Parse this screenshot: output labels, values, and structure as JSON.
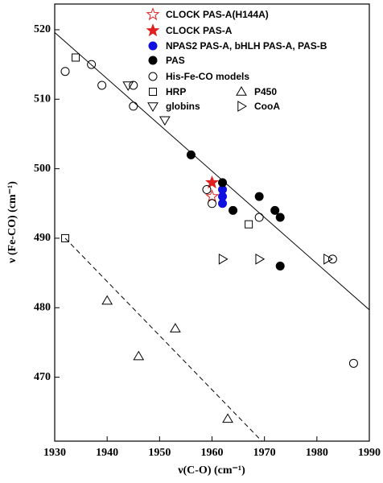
{
  "chart_data": {
    "type": "scatter",
    "x_label": "ν(C-O) (cm⁻¹)",
    "y_label": "ν (Fe-CO) (cm⁻¹)",
    "xlim": [
      1930,
      1990
    ],
    "xticks": [
      1930,
      1940,
      1950,
      1960,
      1970,
      1980,
      1990
    ],
    "ylim": [
      460.8,
      523.7
    ],
    "yticks": [
      470,
      480,
      490,
      500,
      510,
      520
    ],
    "series": [
      {
        "name": "CLOCK PAS-A(H144A)",
        "color": "#e02020",
        "marker": "star-open",
        "x": [
          1960
        ],
        "y": [
          496
        ]
      },
      {
        "name": "CLOCK PAS-A",
        "color": "#e02020",
        "marker": "star",
        "x": [
          1960
        ],
        "y": [
          498
        ]
      },
      {
        "name": "NPAS2 PAS-A, bHLH PAS-A, PAS-B",
        "color": "#1010e0",
        "marker": "circle",
        "x": [
          1962,
          1962,
          1962
        ],
        "y": [
          497,
          496,
          495
        ]
      },
      {
        "name": "PAS",
        "color": "#000000",
        "marker": "circle",
        "x": [
          1956,
          1962,
          1964,
          1969,
          1972,
          1973,
          1973
        ],
        "y": [
          502,
          498,
          494,
          496,
          494,
          493,
          486
        ]
      },
      {
        "name": "His-Fe-CO models",
        "color": "#000000",
        "marker": "circle-open",
        "x": [
          1932,
          1937,
          1939,
          1945,
          1945,
          1959,
          1960,
          1969,
          1983,
          1987
        ],
        "y": [
          514,
          515,
          512,
          509,
          512,
          497,
          495,
          493,
          487,
          472
        ]
      },
      {
        "name": "HRP",
        "color": "#000000",
        "marker": "square-open",
        "x": [
          1932,
          1934,
          1967
        ],
        "y": [
          490,
          516,
          492
        ]
      },
      {
        "name": "P450",
        "color": "#000000",
        "marker": "triangle-up-open",
        "x": [
          1940,
          1946,
          1953,
          1963
        ],
        "y": [
          481,
          473,
          477,
          464
        ]
      },
      {
        "name": "globins",
        "color": "#000000",
        "marker": "triangle-down-open",
        "x": [
          1944,
          1951
        ],
        "y": [
          512,
          507
        ]
      },
      {
        "name": "CooA",
        "color": "#000000",
        "marker": "triangle-right-open",
        "x": [
          1962,
          1969,
          1982
        ],
        "y": [
          487,
          487,
          487
        ]
      }
    ],
    "lines": [
      {
        "style": "solid",
        "x": [
          1930,
          1990
        ],
        "y": [
          519.6,
          479.7
        ]
      },
      {
        "style": "dashed",
        "x": [
          1932,
          1969.5
        ],
        "y": [
          490,
          460.8
        ]
      }
    ]
  }
}
